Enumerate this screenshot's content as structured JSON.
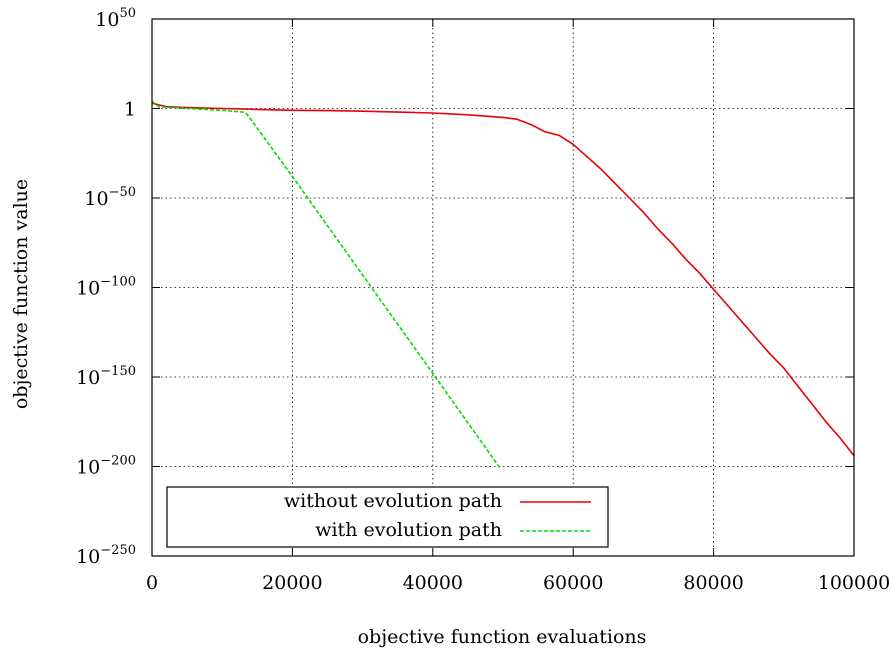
{
  "chart_data": {
    "type": "line",
    "xlabel": "objective function evaluations",
    "ylabel": "objective function value",
    "xlim": [
      0,
      100000
    ],
    "ylim_log10": [
      -250,
      50
    ],
    "yscale": "log",
    "grid": true,
    "legend_position": "bottom-left",
    "x_ticks": [
      {
        "value": 0,
        "label": "0"
      },
      {
        "value": 20000,
        "label": "20000"
      },
      {
        "value": 40000,
        "label": "40000"
      },
      {
        "value": 60000,
        "label": "60000"
      },
      {
        "value": 80000,
        "label": "80000"
      },
      {
        "value": 100000,
        "label": "100000"
      }
    ],
    "y_ticks": [
      {
        "exp": 50,
        "base": "10",
        "sup": "50"
      },
      {
        "exp": 0,
        "base": "1",
        "sup": ""
      },
      {
        "exp": -50,
        "base": "10",
        "sup": "−50"
      },
      {
        "exp": -100,
        "base": "10",
        "sup": "−100"
      },
      {
        "exp": -150,
        "base": "10",
        "sup": "−150"
      },
      {
        "exp": -200,
        "base": "10",
        "sup": "−200"
      },
      {
        "exp": -250,
        "base": "10",
        "sup": "−250"
      }
    ],
    "series": [
      {
        "name": "without evolution path",
        "color": "#e8000b",
        "dash": "solid",
        "points": [
          [
            0,
            3
          ],
          [
            2000,
            1
          ],
          [
            5000,
            0.5
          ],
          [
            10000,
            0
          ],
          [
            15000,
            -0.5
          ],
          [
            20000,
            -1
          ],
          [
            25000,
            -1.2
          ],
          [
            30000,
            -1.5
          ],
          [
            35000,
            -2
          ],
          [
            40000,
            -2.5
          ],
          [
            45000,
            -3.5
          ],
          [
            50000,
            -5
          ],
          [
            52000,
            -6
          ],
          [
            54000,
            -9
          ],
          [
            56000,
            -13
          ],
          [
            58000,
            -15
          ],
          [
            60000,
            -20
          ],
          [
            62000,
            -27
          ],
          [
            64000,
            -34
          ],
          [
            66000,
            -42
          ],
          [
            68000,
            -50
          ],
          [
            70000,
            -58
          ],
          [
            72000,
            -67
          ],
          [
            74000,
            -75
          ],
          [
            76000,
            -84
          ],
          [
            78000,
            -92
          ],
          [
            80000,
            -101
          ],
          [
            82000,
            -110
          ],
          [
            84000,
            -119
          ],
          [
            86000,
            -128
          ],
          [
            88000,
            -137
          ],
          [
            90000,
            -145
          ],
          [
            92000,
            -155
          ],
          [
            94000,
            -165
          ],
          [
            96000,
            -175
          ],
          [
            98000,
            -184
          ],
          [
            100000,
            -194
          ]
        ]
      },
      {
        "name": "with evolution path",
        "color": "#00dd00",
        "dash": "dashed",
        "points": [
          [
            0,
            4
          ],
          [
            1000,
            1
          ],
          [
            5000,
            0
          ],
          [
            10000,
            -1
          ],
          [
            13000,
            -2
          ],
          [
            13500,
            -3
          ],
          [
            20000,
            -38
          ],
          [
            30000,
            -93
          ],
          [
            40000,
            -148
          ],
          [
            49600,
            -201
          ]
        ]
      }
    ]
  }
}
